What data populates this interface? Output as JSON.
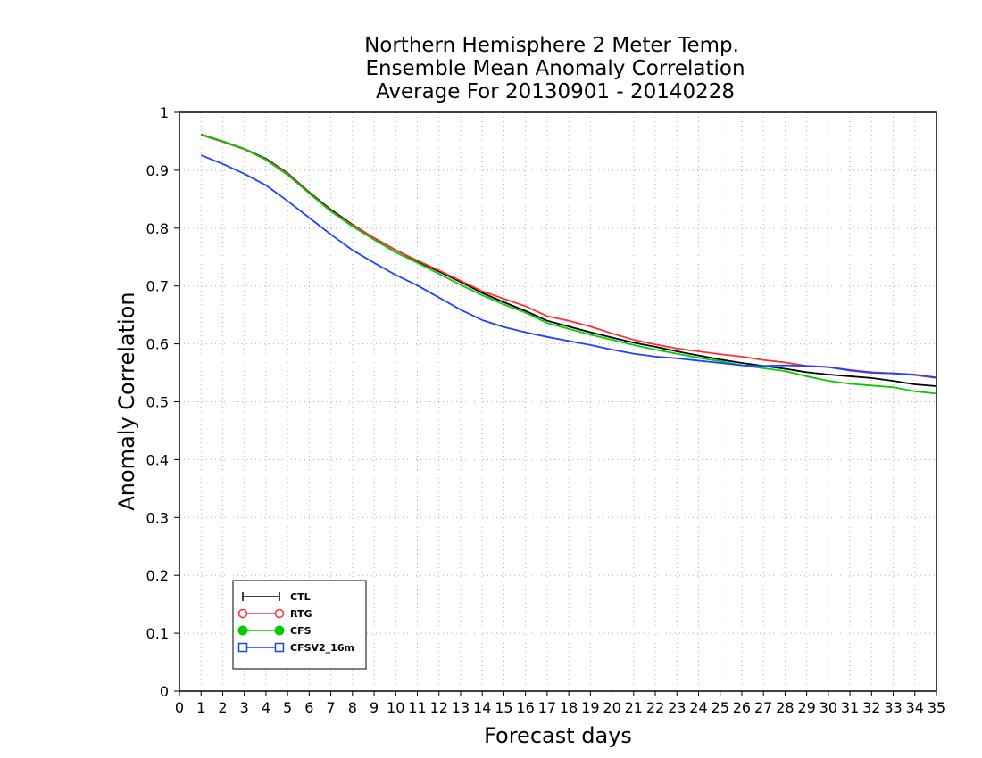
{
  "chart_data": {
    "type": "line",
    "title_lines": [
      "Northern Hemisphere 2 Meter Temp.",
      "Ensemble Mean Anomaly Correlation",
      "Average For 20130901 - 20140228"
    ],
    "xlabel": "Forecast days",
    "ylabel": "Anomaly Correlation",
    "xlim": [
      0,
      35
    ],
    "ylim": [
      0,
      1
    ],
    "x_ticks": [
      0,
      1,
      2,
      3,
      4,
      5,
      6,
      7,
      8,
      9,
      10,
      11,
      12,
      13,
      14,
      15,
      16,
      17,
      18,
      19,
      20,
      21,
      22,
      23,
      24,
      25,
      26,
      27,
      28,
      29,
      30,
      31,
      32,
      33,
      34,
      35
    ],
    "y_ticks": [
      "0",
      "0.1",
      "0.2",
      "0.3",
      "0.4",
      "0.5",
      "0.6",
      "0.7",
      "0.8",
      "0.9",
      "1"
    ],
    "grid": true,
    "legend_position": "bottom-left",
    "x": [
      1,
      2,
      3,
      4,
      5,
      6,
      7,
      8,
      9,
      10,
      11,
      12,
      13,
      14,
      15,
      16,
      17,
      18,
      19,
      20,
      21,
      22,
      23,
      24,
      25,
      26,
      27,
      28,
      29,
      30,
      31,
      32,
      33,
      34,
      35
    ],
    "series": [
      {
        "name": "CTL",
        "color": "#000000",
        "marker": "plus",
        "values": [
          0.962,
          0.95,
          0.937,
          0.92,
          0.895,
          0.862,
          0.832,
          0.806,
          0.783,
          0.762,
          0.743,
          0.725,
          0.707,
          0.688,
          0.672,
          0.657,
          0.64,
          0.63,
          0.62,
          0.611,
          0.602,
          0.595,
          0.587,
          0.58,
          0.573,
          0.567,
          0.562,
          0.557,
          0.551,
          0.547,
          0.544,
          0.541,
          0.536,
          0.53,
          0.527
        ]
      },
      {
        "name": "RTG",
        "color": "#ff3030",
        "marker": "open-circle",
        "values": [
          0.961,
          0.949,
          0.936,
          0.919,
          0.894,
          0.861,
          0.83,
          0.805,
          0.783,
          0.762,
          0.744,
          0.727,
          0.709,
          0.691,
          0.678,
          0.665,
          0.648,
          0.64,
          0.63,
          0.618,
          0.607,
          0.599,
          0.592,
          0.587,
          0.582,
          0.578,
          0.572,
          0.568,
          0.562,
          0.56,
          0.555,
          0.551,
          0.549,
          0.546,
          0.541
        ]
      },
      {
        "name": "CFS",
        "color": "#00cc00",
        "marker": "filled-circle",
        "values": [
          0.962,
          0.95,
          0.937,
          0.918,
          0.892,
          0.86,
          0.829,
          0.803,
          0.78,
          0.758,
          0.74,
          0.721,
          0.702,
          0.684,
          0.668,
          0.654,
          0.636,
          0.626,
          0.616,
          0.607,
          0.598,
          0.59,
          0.583,
          0.576,
          0.57,
          0.563,
          0.558,
          0.553,
          0.544,
          0.536,
          0.531,
          0.528,
          0.525,
          0.518,
          0.514
        ]
      },
      {
        "name": "CFSV2_16m",
        "color": "#2040ff",
        "marker": "open-square",
        "values": [
          0.926,
          0.911,
          0.894,
          0.874,
          0.847,
          0.818,
          0.789,
          0.762,
          0.74,
          0.719,
          0.701,
          0.68,
          0.659,
          0.641,
          0.629,
          0.62,
          0.612,
          0.605,
          0.598,
          0.59,
          0.583,
          0.578,
          0.575,
          0.571,
          0.567,
          0.563,
          0.562,
          0.563,
          0.562,
          0.56,
          0.554,
          0.55,
          0.549,
          0.547,
          0.542
        ]
      }
    ]
  }
}
